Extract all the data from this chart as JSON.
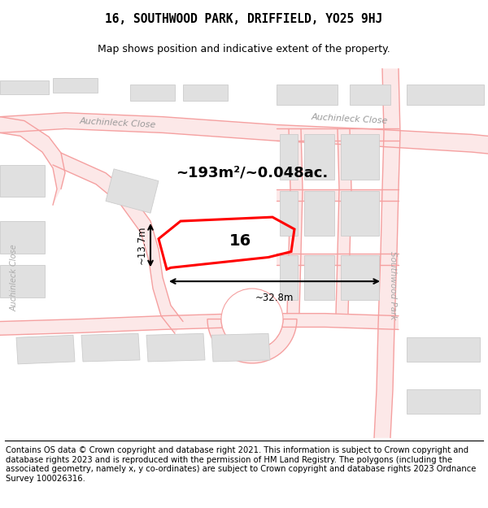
{
  "title_line1": "16, SOUTHWOOD PARK, DRIFFIELD, YO25 9HJ",
  "title_line2": "Map shows position and indicative extent of the property.",
  "area_text": "~193m²/~0.048ac.",
  "dim_height": "~13.7m",
  "dim_width": "~32.8m",
  "property_number": "16",
  "street_label_top": "Auchinleck Close",
  "street_label_top2": "Auchinleck Close",
  "street_label_right": "Southwood Park",
  "street_label_left": "Auchinleck Close",
  "footer_text": "Contains OS data © Crown copyright and database right 2021. This information is subject to Crown copyright and database rights 2023 and is reproduced with the permission of HM Land Registry. The polygons (including the associated geometry, namely x, y co-ordinates) are subject to Crown copyright and database rights 2023 Ordnance Survey 100026316.",
  "bg_color": "#ffffff",
  "map_bg_color": "#ffffff",
  "road_color": "#f5a0a0",
  "road_fill_color": "#fce8e8",
  "building_color": "#e0e0e0",
  "building_edge_color": "#cccccc",
  "property_color": "#ff0000",
  "title_fontsize": 10.5,
  "subtitle_fontsize": 9,
  "footer_fontsize": 7.2
}
